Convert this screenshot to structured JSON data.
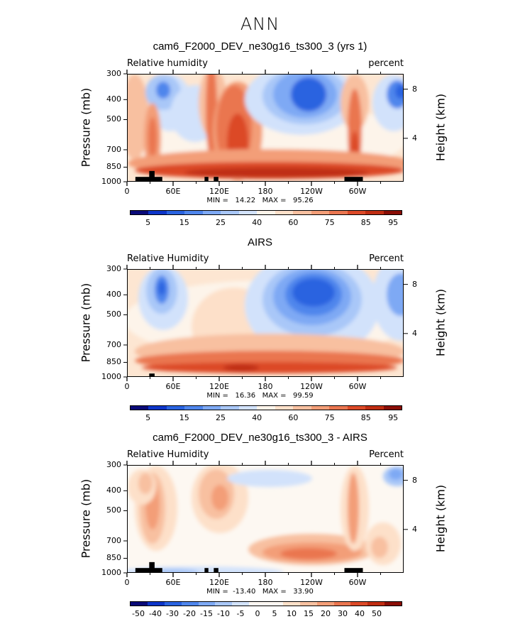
{
  "main_title": "ANN",
  "x_ticks": [
    "0",
    "60E",
    "120E",
    "180",
    "120W",
    "60W"
  ],
  "y_ticks_pressure": [
    "300",
    "400",
    "500",
    "700",
    "850",
    "1000"
  ],
  "y_ticks_height": [
    "8",
    "4"
  ],
  "ylabel_left": "Pressure (mb)",
  "ylabel_right": "Height (km)",
  "panels": [
    {
      "title": "cam6_F2000_DEV_ne30g16_ts300_3 (yrs 1)",
      "left_label": "Relative humidity",
      "right_label": "percent",
      "minmax": "MIN =   14.22   MAX =   95.26",
      "cbar_labels": [
        "5",
        "15",
        "25",
        "40",
        "60",
        "75",
        "85",
        "95"
      ]
    },
    {
      "title": "AIRS",
      "left_label": "Relative Humidity",
      "right_label": "Percent",
      "minmax": "MIN =   16.36   MAX =   99.59",
      "cbar_labels": [
        "5",
        "15",
        "25",
        "40",
        "60",
        "75",
        "85",
        "95"
      ]
    },
    {
      "title": "cam6_F2000_DEV_ne30g16_ts300_3 - AIRS",
      "left_label": "Relative Humidity",
      "right_label": "Percent",
      "minmax": "MIN =  -13.40   MAX =   33.90",
      "cbar_labels": [
        "-50",
        "-40",
        "-30",
        "-20",
        "-15",
        "-10",
        "-5",
        "0",
        "5",
        "10",
        "15",
        "20",
        "30",
        "40",
        "50"
      ]
    }
  ],
  "chart_data": [
    {
      "type": "heatmap",
      "title": "cam6_F2000_DEV_ne30g16_ts300_3 (yrs 1)",
      "xlabel": "",
      "ylabel": "Pressure (mb)",
      "y2label": "Height (km)",
      "xlim": [
        0,
        360
      ],
      "ylim": [
        1000,
        300
      ],
      "units": "percent",
      "min": 14.22,
      "max": 95.26,
      "color_levels": [
        5,
        10,
        15,
        20,
        25,
        30,
        40,
        50,
        60,
        70,
        75,
        80,
        85,
        90,
        95
      ],
      "colors": [
        "#0a0a78",
        "#0d35c8",
        "#2a63e0",
        "#4f86ec",
        "#7ea9f4",
        "#a9c7f8",
        "#d2e2fb",
        "#fdf4ea",
        "#fde0c9",
        "#f8c0a0",
        "#f39e78",
        "#ea7650",
        "#dc4a28",
        "#bf2d12",
        "#8a0e06"
      ]
    },
    {
      "type": "heatmap",
      "title": "AIRS",
      "xlim": [
        0,
        360
      ],
      "ylim": [
        1000,
        300
      ],
      "units": "Percent",
      "min": 16.36,
      "max": 99.59,
      "color_levels": [
        5,
        10,
        15,
        20,
        25,
        30,
        40,
        50,
        60,
        70,
        75,
        80,
        85,
        90,
        95
      ],
      "colors": [
        "#0a0a78",
        "#0d35c8",
        "#2a63e0",
        "#4f86ec",
        "#7ea9f4",
        "#a9c7f8",
        "#d2e2fb",
        "#fdf4ea",
        "#fde0c9",
        "#f8c0a0",
        "#f39e78",
        "#ea7650",
        "#dc4a28",
        "#bf2d12",
        "#8a0e06"
      ]
    },
    {
      "type": "heatmap",
      "title": "cam6_F2000_DEV_ne30g16_ts300_3 - AIRS",
      "xlim": [
        0,
        360
      ],
      "ylim": [
        1000,
        300
      ],
      "units": "Percent",
      "min": -13.4,
      "max": 33.9,
      "color_levels": [
        -50,
        -40,
        -30,
        -20,
        -15,
        -10,
        -5,
        0,
        5,
        10,
        15,
        20,
        30,
        40,
        50
      ],
      "colors": [
        "#0a0a78",
        "#0d35c8",
        "#2a63e0",
        "#4f86ec",
        "#7ea9f4",
        "#a9c7f8",
        "#d2e2fb",
        "#fdf8f2",
        "#fdf8f2",
        "#fde0c9",
        "#f8c0a0",
        "#f39e78",
        "#ea7650",
        "#dc4a28",
        "#bf2d12",
        "#8a0e06"
      ]
    }
  ]
}
